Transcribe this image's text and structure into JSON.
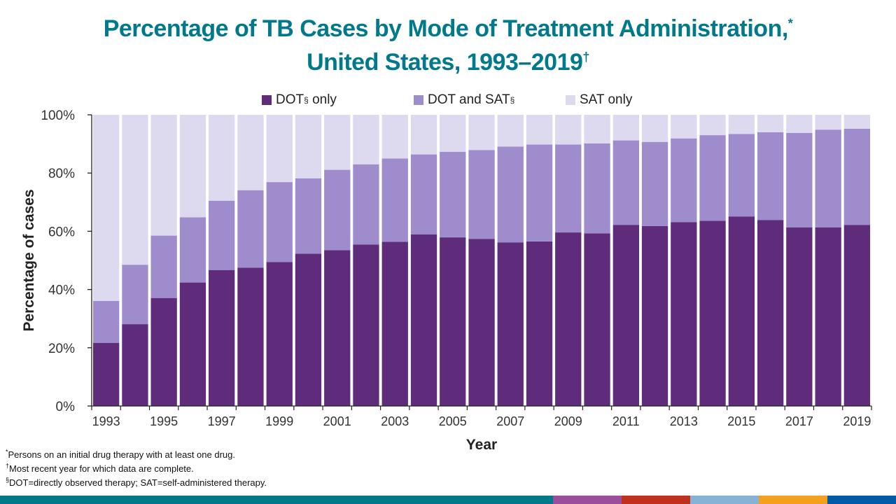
{
  "title": {
    "line1": "Percentage of TB Cases by Mode of Treatment Administration,",
    "line1_mark": "*",
    "line2": "United States, 1993–2019",
    "line2_mark": "†"
  },
  "legend": [
    {
      "label": "DOT",
      "mark": "§",
      "suffix": " only",
      "color": "#5f2c7c"
    },
    {
      "label": "DOT and SAT",
      "mark": "§",
      "suffix": "",
      "color": "#9f8ccd"
    },
    {
      "label": "SAT only",
      "mark": "",
      "suffix": "",
      "color": "#ddd9ef"
    }
  ],
  "footnotes": [
    {
      "mark": "*",
      "text": "Persons on an initial drug therapy with at least one drug."
    },
    {
      "mark": "†",
      "text": "Most recent year for which data are complete."
    },
    {
      "mark": "§",
      "text": "DOT=directly observed therapy; SAT=self-administered therapy."
    }
  ],
  "bottom_bar_colors": [
    "#00798a",
    "#9b4f9b",
    "#c0311d",
    "#87b1d5",
    "#f5a01c",
    "#005aa8"
  ],
  "chart_data": {
    "type": "bar",
    "stacked": true,
    "title": "Percentage of TB Cases by Mode of Treatment Administration, United States, 1993–2019",
    "xlabel": "Year",
    "ylabel": "Percentage of cases",
    "ylim": [
      0,
      100
    ],
    "yticks": [
      "0%",
      "20%",
      "40%",
      "60%",
      "80%",
      "100%"
    ],
    "ytick_values": [
      0,
      20,
      40,
      60,
      80,
      100
    ],
    "categories": [
      "1993",
      "1994",
      "1995",
      "1996",
      "1997",
      "1998",
      "1999",
      "2000",
      "2001",
      "2002",
      "2003",
      "2004",
      "2005",
      "2006",
      "2007",
      "2008",
      "2009",
      "2010",
      "2011",
      "2012",
      "2013",
      "2014",
      "2015",
      "2016",
      "2017",
      "2018",
      "2019"
    ],
    "xtick_labels": [
      "1993",
      "1995",
      "1997",
      "1999",
      "2001",
      "2003",
      "2005",
      "2007",
      "2009",
      "2011",
      "2013",
      "2015",
      "2017",
      "2019"
    ],
    "legend_position": "top-center",
    "grid": false,
    "series": [
      {
        "name": "DOT only",
        "color": "#5f2c7c",
        "values": [
          21.7,
          28.1,
          37.1,
          42.4,
          46.7,
          47.5,
          49.4,
          52.3,
          53.5,
          55.4,
          56.4,
          58.9,
          57.9,
          57.4,
          56.2,
          56.5,
          59.6,
          59.3,
          62.2,
          61.8,
          63.1,
          63.6,
          65.1,
          63.9,
          61.3,
          61.3,
          62.2
        ]
      },
      {
        "name": "DOT and SAT",
        "color": "#9f8ccd",
        "values": [
          14.4,
          20.4,
          21.4,
          22.4,
          23.8,
          26.6,
          27.5,
          25.9,
          27.6,
          27.6,
          28.6,
          27.5,
          29.4,
          30.5,
          32.9,
          33.3,
          30.2,
          30.9,
          29.0,
          28.9,
          28.8,
          29.4,
          28.3,
          30.1,
          32.5,
          33.6,
          33.0
        ]
      },
      {
        "name": "SAT only",
        "color": "#ddd9ef",
        "values": [
          63.9,
          51.5,
          41.5,
          35.2,
          29.5,
          25.9,
          23.1,
          21.8,
          18.9,
          17.0,
          15.0,
          13.6,
          12.7,
          12.1,
          10.9,
          10.2,
          10.2,
          9.8,
          8.8,
          9.3,
          8.1,
          7.0,
          6.6,
          6.0,
          6.2,
          5.1,
          4.8
        ]
      }
    ]
  }
}
